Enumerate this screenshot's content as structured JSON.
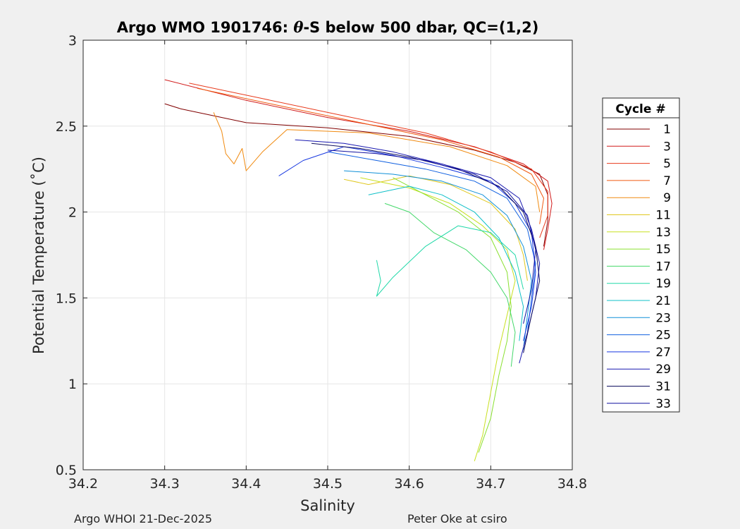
{
  "footer": {
    "left": "Argo WHOI 21-Dec-2025",
    "right": "Peter Oke at csiro"
  },
  "chart_data": {
    "type": "line",
    "title_prefix": "Argo WMO 1901746: ",
    "title_theta": "θ",
    "title_suffix": "-S below 500 dbar,  QC=(1,2)",
    "xlabel": "Salinity",
    "ylabel": "Potential Temperature (˚C)",
    "xlim": [
      34.2,
      34.8
    ],
    "ylim": [
      0.5,
      3
    ],
    "xticks": [
      "34.2",
      "34.3",
      "34.4",
      "34.5",
      "34.6",
      "34.7",
      "34.8"
    ],
    "yticks": [
      "0.5",
      "1",
      "1.5",
      "2",
      "2.5",
      "3"
    ],
    "grid": true,
    "legend_title": "Cycle #",
    "legend_position": "right, outside plot",
    "series": [
      {
        "name": "1",
        "color": "#800000",
        "points": [
          [
            34.3,
            2.63
          ],
          [
            34.32,
            2.6
          ],
          [
            34.4,
            2.52
          ],
          [
            34.5,
            2.49
          ],
          [
            34.6,
            2.44
          ],
          [
            34.68,
            2.36
          ],
          [
            34.73,
            2.29
          ],
          [
            34.76,
            2.22
          ],
          [
            34.77,
            2.1
          ],
          [
            34.77,
            1.95
          ],
          [
            34.765,
            1.8
          ]
        ]
      },
      {
        "name": "3",
        "color": "#d11a1a",
        "points": [
          [
            34.3,
            2.77
          ],
          [
            34.4,
            2.65
          ],
          [
            34.5,
            2.55
          ],
          [
            34.6,
            2.47
          ],
          [
            34.68,
            2.38
          ],
          [
            34.74,
            2.28
          ],
          [
            34.77,
            2.18
          ],
          [
            34.775,
            2.05
          ],
          [
            34.77,
            1.9
          ],
          [
            34.765,
            1.78
          ]
        ]
      },
      {
        "name": "5",
        "color": "#e83a1c",
        "points": [
          [
            34.33,
            2.75
          ],
          [
            34.42,
            2.66
          ],
          [
            34.52,
            2.56
          ],
          [
            34.62,
            2.46
          ],
          [
            34.7,
            2.35
          ],
          [
            34.75,
            2.25
          ],
          [
            34.77,
            2.12
          ],
          [
            34.77,
            1.98
          ],
          [
            34.76,
            1.85
          ]
        ]
      },
      {
        "name": "7",
        "color": "#f05a10",
        "points": [
          [
            34.34,
            2.72
          ],
          [
            34.44,
            2.62
          ],
          [
            34.54,
            2.52
          ],
          [
            34.64,
            2.42
          ],
          [
            34.71,
            2.32
          ],
          [
            34.75,
            2.22
          ],
          [
            34.765,
            2.08
          ],
          [
            34.76,
            1.93
          ]
        ]
      },
      {
        "name": "9",
        "color": "#f08a10",
        "points": [
          [
            34.36,
            2.58
          ],
          [
            34.37,
            2.47
          ],
          [
            34.375,
            2.34
          ],
          [
            34.385,
            2.28
          ],
          [
            34.395,
            2.37
          ],
          [
            34.4,
            2.24
          ],
          [
            34.42,
            2.35
          ],
          [
            34.45,
            2.48
          ],
          [
            34.55,
            2.46
          ],
          [
            34.65,
            2.38
          ],
          [
            34.72,
            2.27
          ],
          [
            34.755,
            2.15
          ],
          [
            34.76,
            2.0
          ]
        ]
      },
      {
        "name": "11",
        "color": "#e0c820",
        "points": [
          [
            34.52,
            2.19
          ],
          [
            34.55,
            2.16
          ],
          [
            34.6,
            2.21
          ],
          [
            34.65,
            2.16
          ],
          [
            34.7,
            2.05
          ],
          [
            34.73,
            1.9
          ],
          [
            34.74,
            1.75
          ],
          [
            34.745,
            1.6
          ]
        ]
      },
      {
        "name": "13",
        "color": "#c8e020",
        "points": [
          [
            34.54,
            2.2
          ],
          [
            34.6,
            2.14
          ],
          [
            34.65,
            2.05
          ],
          [
            34.69,
            1.92
          ],
          [
            34.72,
            1.78
          ],
          [
            34.73,
            1.6
          ],
          [
            34.72,
            1.4
          ],
          [
            34.71,
            1.2
          ],
          [
            34.7,
            0.95
          ],
          [
            34.69,
            0.7
          ],
          [
            34.68,
            0.55
          ]
        ]
      },
      {
        "name": "15",
        "color": "#8ae030",
        "points": [
          [
            34.58,
            2.2
          ],
          [
            34.62,
            2.1
          ],
          [
            34.66,
            2.0
          ],
          [
            34.7,
            1.85
          ],
          [
            34.72,
            1.65
          ],
          [
            34.725,
            1.45
          ],
          [
            34.72,
            1.25
          ],
          [
            34.71,
            1.05
          ],
          [
            34.7,
            0.8
          ],
          [
            34.685,
            0.6
          ]
        ]
      },
      {
        "name": "17",
        "color": "#44d86a",
        "points": [
          [
            34.57,
            2.05
          ],
          [
            34.6,
            2.0
          ],
          [
            34.63,
            1.88
          ],
          [
            34.67,
            1.78
          ],
          [
            34.7,
            1.65
          ],
          [
            34.72,
            1.5
          ],
          [
            34.73,
            1.3
          ],
          [
            34.725,
            1.1
          ]
        ]
      },
      {
        "name": "19",
        "color": "#20d8a8",
        "points": [
          [
            34.56,
            1.72
          ],
          [
            34.565,
            1.6
          ],
          [
            34.56,
            1.51
          ],
          [
            34.58,
            1.62
          ],
          [
            34.62,
            1.8
          ],
          [
            34.66,
            1.92
          ],
          [
            34.7,
            1.88
          ],
          [
            34.73,
            1.75
          ],
          [
            34.74,
            1.55
          ]
        ]
      },
      {
        "name": "21",
        "color": "#10c0c8",
        "points": [
          [
            34.55,
            2.1
          ],
          [
            34.6,
            2.15
          ],
          [
            34.64,
            2.1
          ],
          [
            34.68,
            2.0
          ],
          [
            34.71,
            1.85
          ],
          [
            34.73,
            1.65
          ],
          [
            34.74,
            1.45
          ],
          [
            34.735,
            1.25
          ]
        ]
      },
      {
        "name": "23",
        "color": "#1090d8",
        "points": [
          [
            34.52,
            2.24
          ],
          [
            34.58,
            2.22
          ],
          [
            34.64,
            2.18
          ],
          [
            34.69,
            2.1
          ],
          [
            34.72,
            1.98
          ],
          [
            34.74,
            1.8
          ],
          [
            34.75,
            1.6
          ],
          [
            34.745,
            1.4
          ],
          [
            34.74,
            1.2
          ]
        ]
      },
      {
        "name": "25",
        "color": "#1060e0",
        "points": [
          [
            34.5,
            2.35
          ],
          [
            34.56,
            2.3
          ],
          [
            34.62,
            2.25
          ],
          [
            34.68,
            2.18
          ],
          [
            34.72,
            2.08
          ],
          [
            34.745,
            1.9
          ],
          [
            34.755,
            1.7
          ],
          [
            34.75,
            1.5
          ],
          [
            34.745,
            1.3
          ]
        ]
      },
      {
        "name": "27",
        "color": "#1838e0",
        "points": [
          [
            34.44,
            2.21
          ],
          [
            34.47,
            2.3
          ],
          [
            34.52,
            2.38
          ],
          [
            34.58,
            2.33
          ],
          [
            34.64,
            2.26
          ],
          [
            34.7,
            2.18
          ],
          [
            34.73,
            2.05
          ],
          [
            34.75,
            1.88
          ],
          [
            34.755,
            1.65
          ],
          [
            34.75,
            1.45
          ],
          [
            34.74,
            1.25
          ]
        ]
      },
      {
        "name": "29",
        "color": "#1818b0",
        "points": [
          [
            34.46,
            2.42
          ],
          [
            34.52,
            2.4
          ],
          [
            34.58,
            2.35
          ],
          [
            34.64,
            2.28
          ],
          [
            34.7,
            2.2
          ],
          [
            34.735,
            2.08
          ],
          [
            34.75,
            1.9
          ],
          [
            34.76,
            1.7
          ],
          [
            34.755,
            1.5
          ],
          [
            34.745,
            1.3
          ],
          [
            34.735,
            1.12
          ]
        ]
      },
      {
        "name": "31",
        "color": "#101060",
        "points": [
          [
            34.48,
            2.4
          ],
          [
            34.54,
            2.37
          ],
          [
            34.6,
            2.32
          ],
          [
            34.66,
            2.25
          ],
          [
            34.71,
            2.15
          ],
          [
            34.74,
            2.0
          ],
          [
            34.755,
            1.8
          ],
          [
            34.76,
            1.6
          ],
          [
            34.75,
            1.4
          ],
          [
            34.74,
            1.18
          ]
        ]
      },
      {
        "name": "33",
        "color": "#1010a0",
        "points": [
          [
            34.5,
            2.36
          ],
          [
            34.56,
            2.34
          ],
          [
            34.62,
            2.3
          ],
          [
            34.68,
            2.22
          ],
          [
            34.72,
            2.12
          ],
          [
            34.745,
            1.98
          ],
          [
            34.755,
            1.78
          ],
          [
            34.75,
            1.55
          ],
          [
            34.74,
            1.35
          ]
        ]
      }
    ]
  }
}
